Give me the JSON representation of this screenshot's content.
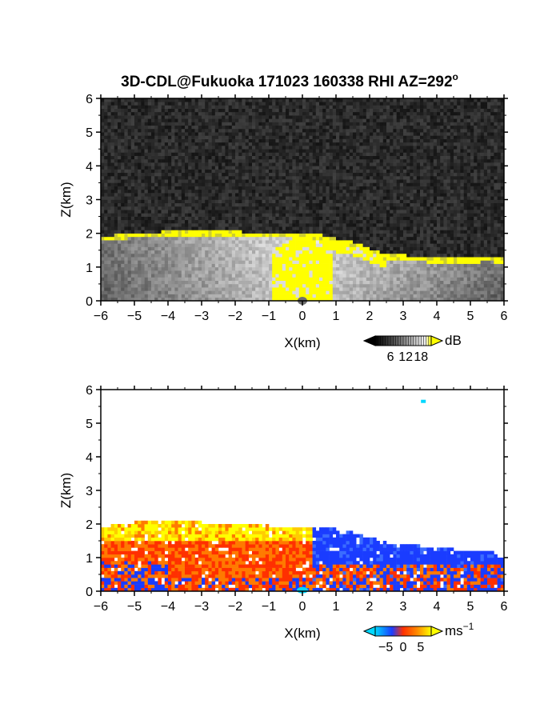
{
  "title_main": "3D-CDL@Fukuoka 171023 160338 RHI AZ=292",
  "title_sup": "o",
  "chart_data": [
    {
      "type": "heatmap",
      "panel": "reflectivity",
      "xlabel": "X(km)",
      "ylabel": "Z(km)",
      "xlim": [
        -6,
        6
      ],
      "ylim": [
        0,
        6
      ],
      "x_ticks": [
        "-6",
        "-5",
        "-4",
        "-3",
        "-2",
        "-1",
        "0",
        "1",
        "2",
        "3",
        "4",
        "5",
        "6"
      ],
      "y_ticks": [
        "0",
        "1",
        "2",
        "3",
        "4",
        "5",
        "6"
      ],
      "colorbar": {
        "unit": "dB",
        "ticks": [
          "6",
          "12",
          "18"
        ],
        "tick_values": [
          6,
          12,
          18
        ],
        "range": [
          0,
          22
        ]
      },
      "echo_top_km": [
        [
          -6,
          1.85
        ],
        [
          -5.5,
          1.9
        ],
        [
          -5,
          1.95
        ],
        [
          -4,
          2.0
        ],
        [
          -3,
          2.02
        ],
        [
          -2,
          2.0
        ],
        [
          -1,
          1.95
        ],
        [
          0,
          1.92
        ],
        [
          0.5,
          1.9
        ],
        [
          1,
          1.8
        ],
        [
          1.5,
          1.7
        ],
        [
          2,
          1.5
        ],
        [
          2.5,
          1.3
        ],
        [
          3,
          1.3
        ],
        [
          3.5,
          1.25
        ],
        [
          4,
          1.2
        ],
        [
          4.5,
          1.2
        ],
        [
          5,
          1.2
        ],
        [
          5.5,
          1.25
        ],
        [
          6,
          1.2
        ]
      ],
      "colors": {
        "background": "#2a2a2a",
        "saturated": "#ffff00"
      }
    },
    {
      "type": "heatmap",
      "panel": "doppler_velocity",
      "xlabel": "X(km)",
      "ylabel": "Z(km)",
      "xlim": [
        -6,
        6
      ],
      "ylim": [
        0,
        6
      ],
      "x_ticks": [
        "-6",
        "-5",
        "-4",
        "-3",
        "-2",
        "-1",
        "0",
        "1",
        "2",
        "3",
        "4",
        "5",
        "6"
      ],
      "y_ticks": [
        "0",
        "1",
        "2",
        "3",
        "4",
        "5",
        "6"
      ],
      "colorbar": {
        "unit": "ms",
        "unit_sup": "−1",
        "ticks": [
          "−5",
          "0",
          "5"
        ],
        "tick_values": [
          -5,
          0,
          5
        ],
        "range": [
          -8,
          8
        ]
      },
      "echo_top_km": [
        [
          -6,
          1.9
        ],
        [
          -5.5,
          2.0
        ],
        [
          -5,
          2.05
        ],
        [
          -4,
          2.1
        ],
        [
          -3,
          2.05
        ],
        [
          -2,
          2.0
        ],
        [
          -1,
          1.95
        ],
        [
          0,
          1.95
        ],
        [
          0.5,
          1.95
        ],
        [
          1,
          1.85
        ],
        [
          1.5,
          1.75
        ],
        [
          2,
          1.6
        ],
        [
          2.5,
          1.45
        ],
        [
          3,
          1.4
        ],
        [
          3.5,
          1.35
        ],
        [
          4,
          1.3
        ],
        [
          4.5,
          1.25
        ],
        [
          5,
          1.2
        ],
        [
          5.5,
          1.2
        ],
        [
          6,
          1.1
        ]
      ],
      "isolated_echo": {
        "x": 3.6,
        "z": 5.65
      },
      "colors": {
        "negative": "#1a3cff",
        "zero": "#ff3000",
        "positive": "#ffff00",
        "extreme_negative": "#00d8ff"
      }
    }
  ]
}
